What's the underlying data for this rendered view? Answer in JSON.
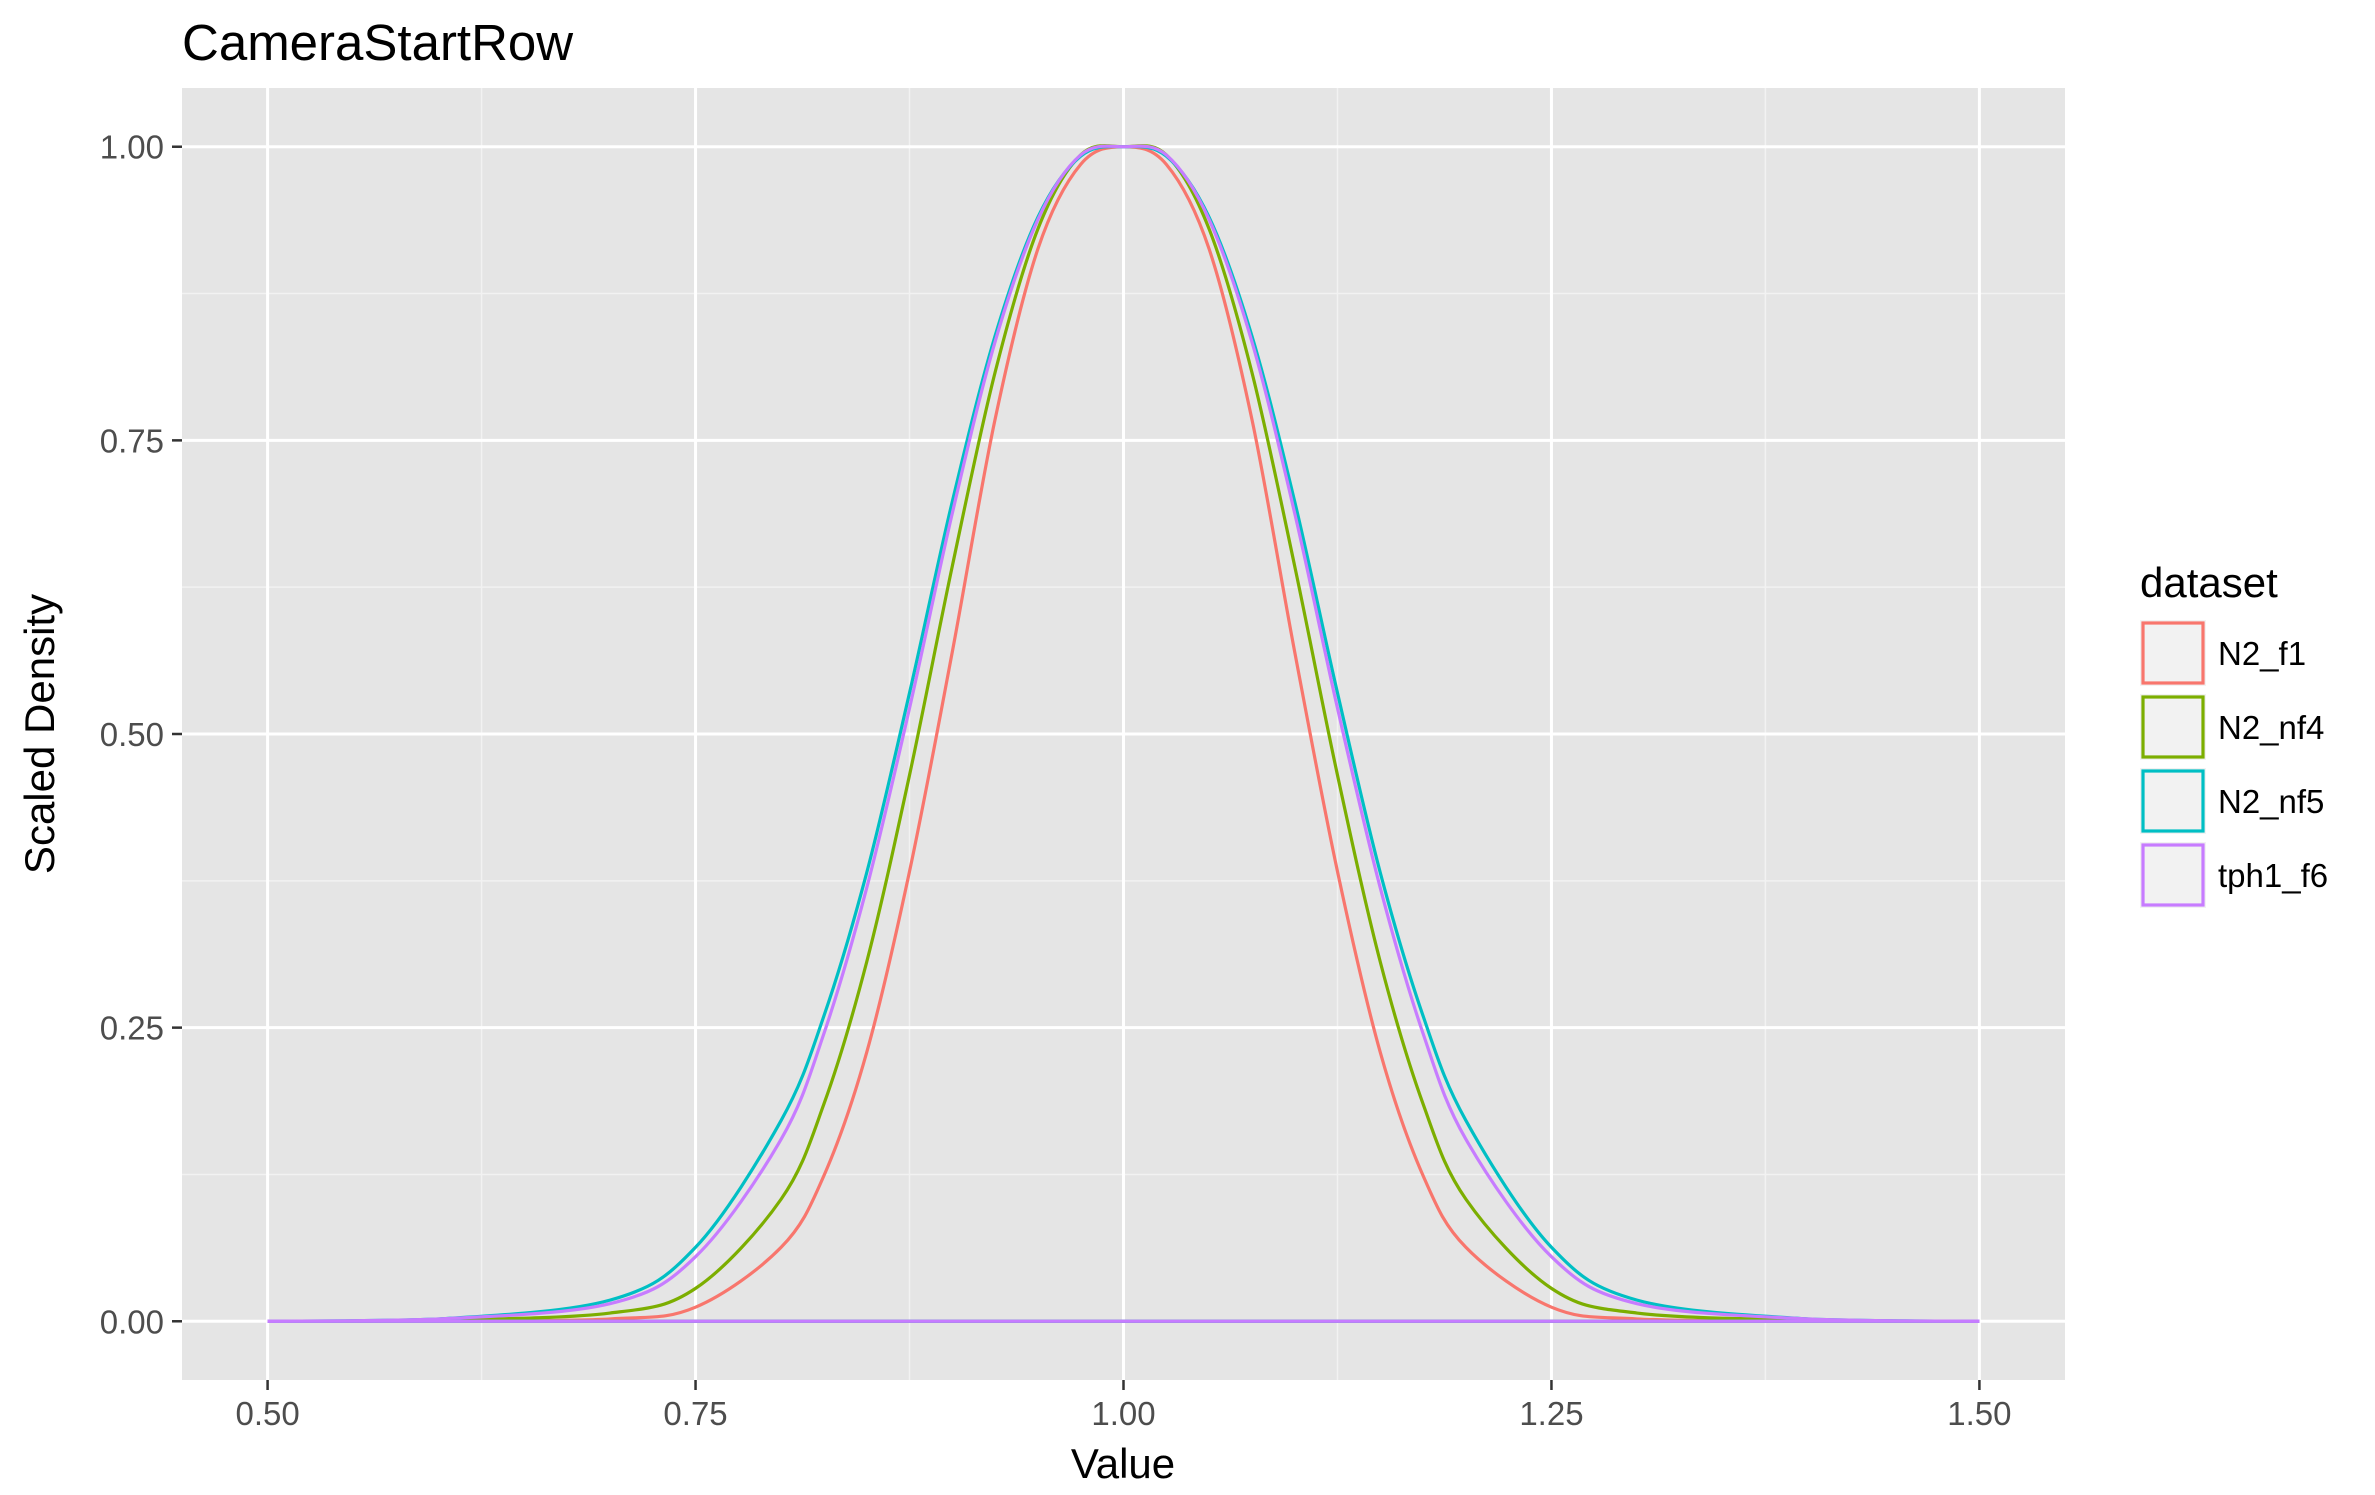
{
  "chart_data": {
    "type": "line",
    "title": "CameraStartRow",
    "xlabel": "Value",
    "ylabel": "Scaled Density",
    "xlim": [
      0.45,
      1.55
    ],
    "ylim": [
      -0.05,
      1.05
    ],
    "x_ticks": [
      0.5,
      0.75,
      1.0,
      1.25,
      1.5
    ],
    "x_tick_labels": [
      "0.50",
      "0.75",
      "1.00",
      "1.25",
      "1.50"
    ],
    "y_ticks": [
      0,
      0.25,
      0.5,
      0.75,
      1.0
    ],
    "y_tick_labels": [
      "0.00",
      "0.25",
      "0.50",
      "0.75",
      "1.00"
    ],
    "x_minor_ticks": [
      0.625,
      0.875,
      1.125,
      1.375
    ],
    "y_minor_ticks": [
      0.125,
      0.375,
      0.625,
      0.875
    ],
    "grid": true,
    "legend_title": "dataset",
    "legend_position": "right",
    "series": [
      {
        "name": "N2_f1",
        "color": "#F8766D",
        "x": [
          0.5,
          0.6,
          0.7,
          0.75,
          0.8,
          0.825,
          0.85,
          0.875,
          0.9,
          0.925,
          0.95,
          0.975,
          1.0,
          1.025,
          1.05,
          1.075,
          1.1,
          1.125,
          1.15,
          1.175,
          1.2,
          1.25,
          1.3,
          1.4,
          1.5
        ],
        "y": [
          0.0,
          0.0,
          0.002,
          0.012,
          0.063,
          0.124,
          0.229,
          0.383,
          0.57,
          0.768,
          0.913,
          0.985,
          1.0,
          0.985,
          0.913,
          0.768,
          0.57,
          0.383,
          0.229,
          0.124,
          0.063,
          0.012,
          0.002,
          0.0,
          0.0
        ]
      },
      {
        "name": "N2_nf4",
        "color": "#7CAE00",
        "x": [
          0.5,
          0.6,
          0.7,
          0.75,
          0.8,
          0.825,
          0.85,
          0.875,
          0.9,
          0.925,
          0.95,
          0.975,
          1.0,
          1.025,
          1.05,
          1.075,
          1.1,
          1.125,
          1.15,
          1.175,
          1.2,
          1.25,
          1.3,
          1.4,
          1.5
        ],
        "y": [
          0.0,
          0.001,
          0.007,
          0.028,
          0.104,
          0.185,
          0.306,
          0.465,
          0.643,
          0.808,
          0.93,
          0.993,
          1.0,
          0.993,
          0.93,
          0.808,
          0.643,
          0.465,
          0.306,
          0.185,
          0.104,
          0.028,
          0.007,
          0.001,
          0.0
        ]
      },
      {
        "name": "N2_nf5",
        "color": "#00BFC4",
        "x": [
          0.5,
          0.6,
          0.7,
          0.75,
          0.8,
          0.825,
          0.85,
          0.875,
          0.9,
          0.925,
          0.95,
          0.975,
          1.0,
          1.025,
          1.05,
          1.075,
          1.1,
          1.125,
          1.15,
          1.175,
          1.2,
          1.25,
          1.3,
          1.4,
          1.5
        ],
        "y": [
          0.0,
          0.002,
          0.018,
          0.063,
          0.171,
          0.26,
          0.382,
          0.535,
          0.698,
          0.839,
          0.94,
          0.992,
          1.0,
          0.992,
          0.94,
          0.839,
          0.698,
          0.535,
          0.382,
          0.26,
          0.171,
          0.063,
          0.018,
          0.002,
          0.0
        ]
      },
      {
        "name": "tph1_f6",
        "color": "#C77CFF",
        "x": [
          0.5,
          0.6,
          0.7,
          0.75,
          0.8,
          0.825,
          0.85,
          0.875,
          0.9,
          0.925,
          0.95,
          0.975,
          1.0,
          1.025,
          1.05,
          1.075,
          1.1,
          1.125,
          1.15,
          1.175,
          1.2,
          1.25,
          1.3,
          1.4,
          1.5
        ],
        "y": [
          0.0,
          0.002,
          0.015,
          0.055,
          0.155,
          0.245,
          0.369,
          0.522,
          0.688,
          0.834,
          0.938,
          0.993,
          1.0,
          0.993,
          0.938,
          0.834,
          0.688,
          0.522,
          0.369,
          0.245,
          0.155,
          0.055,
          0.015,
          0.002,
          0.0
        ]
      }
    ],
    "colors": {
      "panel_background": "#E5E5E5",
      "grid_major": "#FFFFFF",
      "grid_minor": "#F2F2F2",
      "tick_color": "#333333",
      "legend_key_fill": "#F2F2F2"
    }
  }
}
